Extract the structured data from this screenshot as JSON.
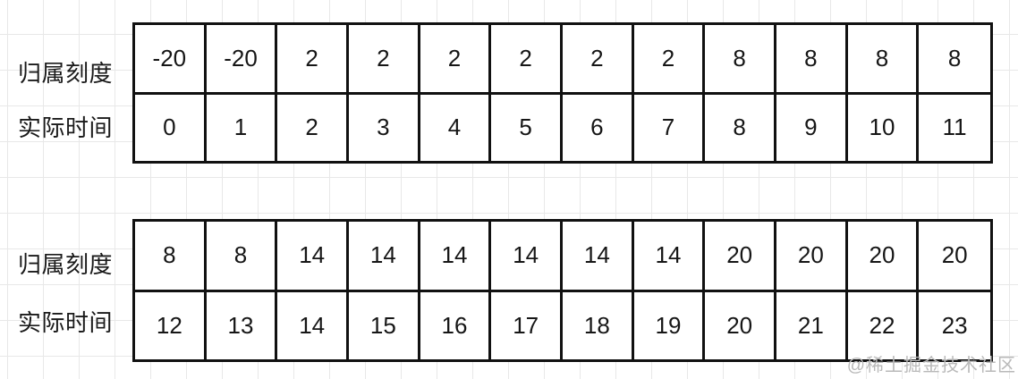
{
  "page": {
    "watermark": "@稀土掘金技术社区"
  },
  "tables": [
    {
      "row_labels": [
        "归属刻度",
        "实际时间"
      ],
      "rows": [
        [
          "-20",
          "-20",
          "2",
          "2",
          "2",
          "2",
          "2",
          "2",
          "8",
          "8",
          "8",
          "8"
        ],
        [
          "0",
          "1",
          "2",
          "3",
          "4",
          "5",
          "6",
          "7",
          "8",
          "9",
          "10",
          "11"
        ]
      ]
    },
    {
      "row_labels": [
        "归属刻度",
        "实际时间"
      ],
      "rows": [
        [
          "8",
          "8",
          "14",
          "14",
          "14",
          "14",
          "14",
          "14",
          "20",
          "20",
          "20",
          "20"
        ],
        [
          "12",
          "13",
          "14",
          "15",
          "16",
          "17",
          "18",
          "19",
          "20",
          "21",
          "22",
          "23"
        ]
      ]
    }
  ],
  "colors": {
    "grid_line": "#e8e8e8",
    "table_border": "#111111",
    "text": "#1a1a1a",
    "watermark": "#b9b9b9"
  }
}
